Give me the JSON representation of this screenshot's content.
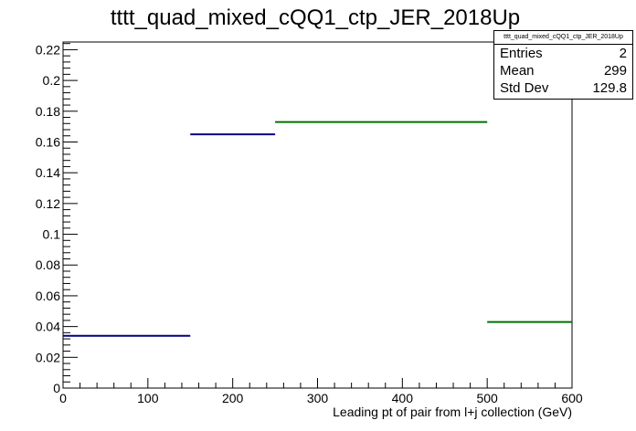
{
  "chart_data": {
    "type": "step-histogram",
    "title": "tttt_quad_mixed_cQQ1_ctp_JER_2018Up",
    "xlabel": "Leading pt of pair from l+j collection (GeV)",
    "ylabel": "",
    "xlim": [
      0,
      600
    ],
    "ylim": [
      0,
      0.225
    ],
    "x_ticks": [
      0,
      100,
      200,
      300,
      400,
      500,
      600
    ],
    "x_tick_labels": [
      "0",
      "100",
      "200",
      "300",
      "400",
      "500",
      "600"
    ],
    "y_ticks": [
      0,
      0.02,
      0.04,
      0.06,
      0.08,
      0.1,
      0.12,
      0.14,
      0.16,
      0.18,
      0.2,
      0.22
    ],
    "y_tick_labels": [
      "0",
      "0.02",
      "0.04",
      "0.06",
      "0.08",
      "0.1",
      "0.12",
      "0.14",
      "0.16",
      "0.18",
      "0.2",
      "0.22"
    ],
    "series": [
      {
        "color": "#000080",
        "bins": [
          {
            "x0": 0,
            "x1": 150,
            "y": 0.034
          },
          {
            "x0": 150,
            "x1": 250,
            "y": 0.165
          }
        ]
      },
      {
        "color": "#007000",
        "bins": [
          {
            "x0": 250,
            "x1": 500,
            "y": 0.173
          },
          {
            "x0": 500,
            "x1": 600,
            "y": 0.043
          }
        ]
      }
    ],
    "grid": false
  },
  "stats_box": {
    "title": "tttt_quad_mixed_cQQ1_ctp_JER_2018Up",
    "rows": [
      {
        "label": "Entries",
        "value": "2"
      },
      {
        "label": "Mean",
        "value": "299"
      },
      {
        "label": "Std Dev",
        "value": "129.8"
      }
    ]
  }
}
